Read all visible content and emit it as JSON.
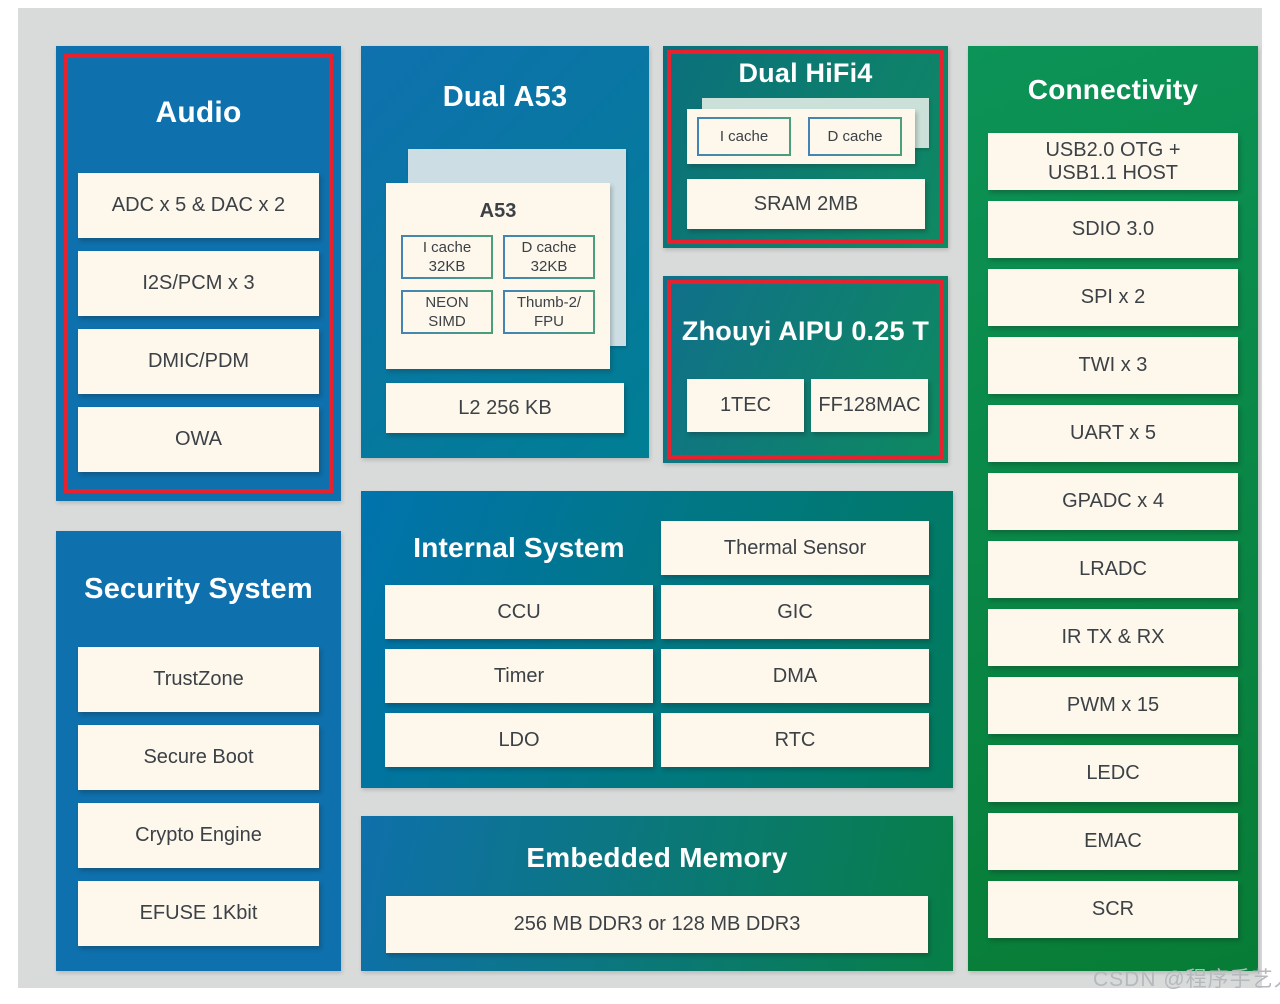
{
  "watermark": "CSDN @程序手艺人",
  "palette": {
    "canvas_gray": "#d9dbdb",
    "block_blue": "#0e70ad",
    "block_teal": "#007e93",
    "block_green": "#0a8a4c",
    "highlight_border": "#e8212e",
    "chip_bg": "#fdf7ec",
    "chip_text": "#3c4146"
  },
  "blocks": {
    "audio": {
      "title": "Audio",
      "items": [
        "ADC x 5 & DAC x 2",
        "I2S/PCM x 3",
        "DMIC/PDM",
        "OWA"
      ]
    },
    "dual_a53": {
      "title": "Dual A53",
      "core_title": "A53",
      "core_cells": [
        "I cache\n32KB",
        "D cache\n32KB",
        "NEON\nSIMD",
        "Thumb-2/\nFPU"
      ],
      "l2_label": "L2 256 KB"
    },
    "dual_hifi4": {
      "title": "Dual HiFi4",
      "core_cells": [
        "I cache",
        "D cache"
      ],
      "sram_label": "SRAM 2MB"
    },
    "aipu": {
      "title": "Zhouyi AIPU 0.25 T",
      "items": [
        "1TEC",
        "FF128MAC"
      ]
    },
    "security": {
      "title": "Security System",
      "items": [
        "TrustZone",
        "Secure Boot",
        "Crypto Engine",
        "EFUSE 1Kbit"
      ]
    },
    "internal_system": {
      "title": "Internal System",
      "thermal": "Thermal Sensor",
      "cells": [
        "CCU",
        "GIC",
        "Timer",
        "DMA",
        "LDO",
        "RTC"
      ]
    },
    "embedded_memory": {
      "title": "Embedded Memory",
      "item": "256 MB DDR3 or 128 MB DDR3"
    },
    "connectivity": {
      "title": "Connectivity",
      "items": [
        "USB2.0 OTG +\nUSB1.1 HOST",
        "SDIO 3.0",
        "SPI x 2",
        "TWI x 3",
        "UART x 5",
        "GPADC  x 4",
        "LRADC",
        "IR TX & RX",
        "PWM x 15",
        "LEDC",
        "EMAC",
        "SCR"
      ]
    }
  }
}
